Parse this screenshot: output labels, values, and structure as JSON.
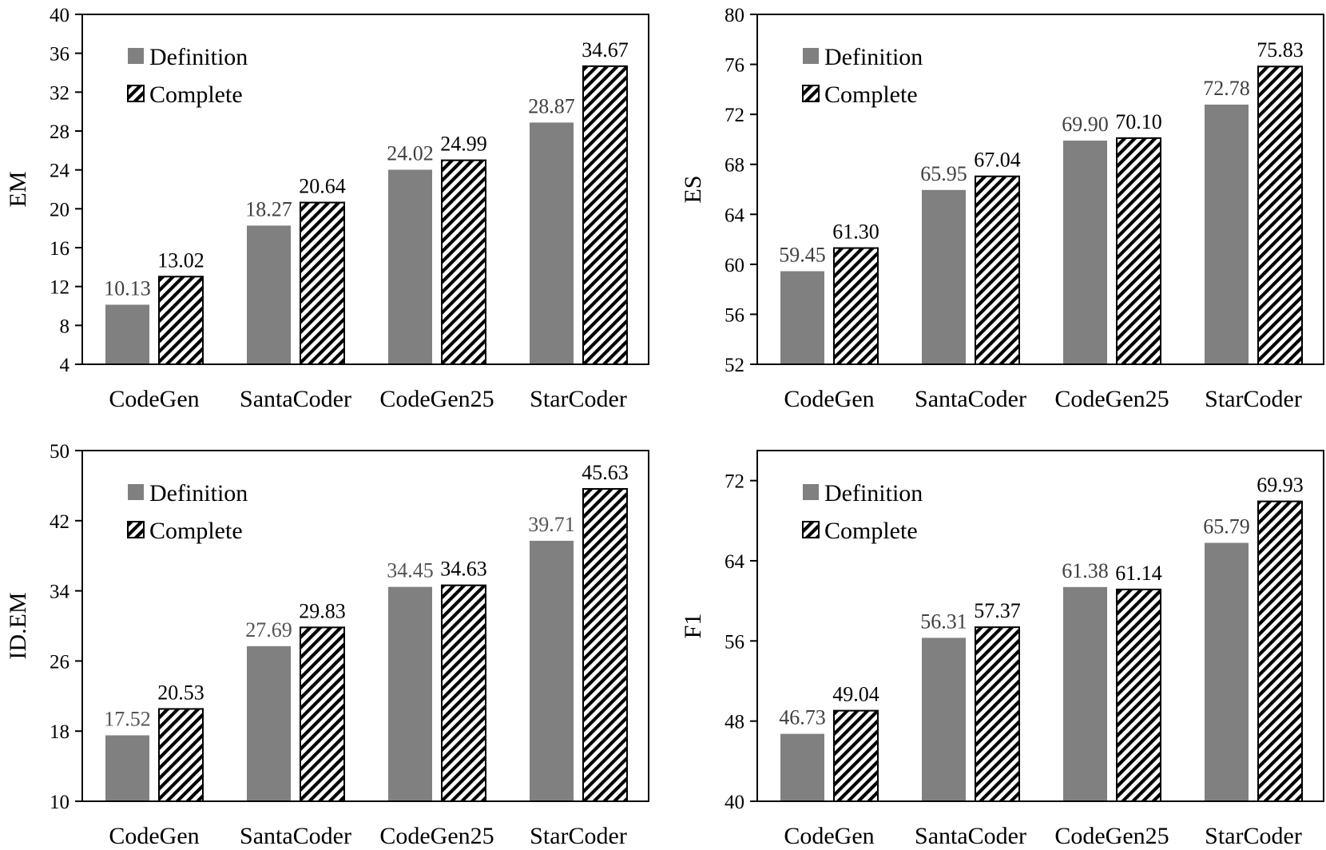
{
  "legend": {
    "definition_label": "Definition",
    "complete_label": "Complete"
  },
  "colors": {
    "definition": "#808080",
    "complete_stroke": "#000000",
    "frame": "#000000",
    "def_label": "#404040"
  },
  "chart_data": [
    {
      "type": "bar",
      "ylabel": "EM",
      "ylim": [
        4,
        40
      ],
      "yticks": [
        4,
        8,
        12,
        16,
        20,
        24,
        28,
        32,
        36,
        40
      ],
      "categories": [
        "CodeGen",
        "SantaCoder",
        "CodeGen25",
        "StarCoder"
      ],
      "series": [
        {
          "name": "Definition",
          "values": [
            10.13,
            18.27,
            24.02,
            28.87
          ],
          "labels": [
            "10.13",
            "18.27",
            "24.02",
            "28.87"
          ]
        },
        {
          "name": "Complete",
          "values": [
            13.02,
            20.64,
            24.99,
            34.67
          ],
          "labels": [
            "13.02",
            "20.64",
            "24.99",
            "34.67"
          ]
        }
      ],
      "legend_position": "top-left"
    },
    {
      "type": "bar",
      "ylabel": "ES",
      "ylim": [
        52,
        80
      ],
      "yticks": [
        52,
        56,
        60,
        64,
        68,
        72,
        76,
        80
      ],
      "categories": [
        "CodeGen",
        "SantaCoder",
        "CodeGen25",
        "StarCoder"
      ],
      "series": [
        {
          "name": "Definition",
          "values": [
            59.45,
            65.95,
            69.9,
            72.78
          ],
          "labels": [
            "59.45",
            "65.95",
            "69.90",
            "72.78"
          ]
        },
        {
          "name": "Complete",
          "values": [
            61.3,
            67.04,
            70.1,
            75.83
          ],
          "labels": [
            "61.30",
            "67.04",
            "70.10",
            "75.83"
          ]
        }
      ],
      "legend_position": "top-left"
    },
    {
      "type": "bar",
      "ylabel": "ID.EM",
      "ylim": [
        10,
        50
      ],
      "yticks": [
        10,
        18,
        26,
        34,
        42,
        50
      ],
      "categories": [
        "CodeGen",
        "SantaCoder",
        "CodeGen25",
        "StarCoder"
      ],
      "series": [
        {
          "name": "Definition",
          "values": [
            17.52,
            27.69,
            34.45,
            39.71
          ],
          "labels": [
            "17.52",
            "27.69",
            "34.45",
            "39.71"
          ]
        },
        {
          "name": "Complete",
          "values": [
            20.53,
            29.83,
            34.63,
            45.63
          ],
          "labels": [
            "20.53",
            "29.83",
            "34.63",
            "45.63"
          ]
        }
      ],
      "legend_position": "top-left"
    },
    {
      "type": "bar",
      "ylabel": "F1",
      "ylim": [
        40,
        75
      ],
      "yticks": [
        40,
        48,
        56,
        64,
        72
      ],
      "categories": [
        "CodeGen",
        "SantaCoder",
        "CodeGen25",
        "StarCoder"
      ],
      "series": [
        {
          "name": "Definition",
          "values": [
            46.73,
            56.31,
            61.38,
            65.79
          ],
          "labels": [
            "46.73",
            "56.31",
            "61.38",
            "65.79"
          ]
        },
        {
          "name": "Complete",
          "values": [
            49.04,
            57.37,
            61.14,
            69.93
          ],
          "labels": [
            "49.04",
            "57.37",
            "61.14",
            "69.93"
          ]
        }
      ],
      "legend_position": "top-left"
    }
  ]
}
